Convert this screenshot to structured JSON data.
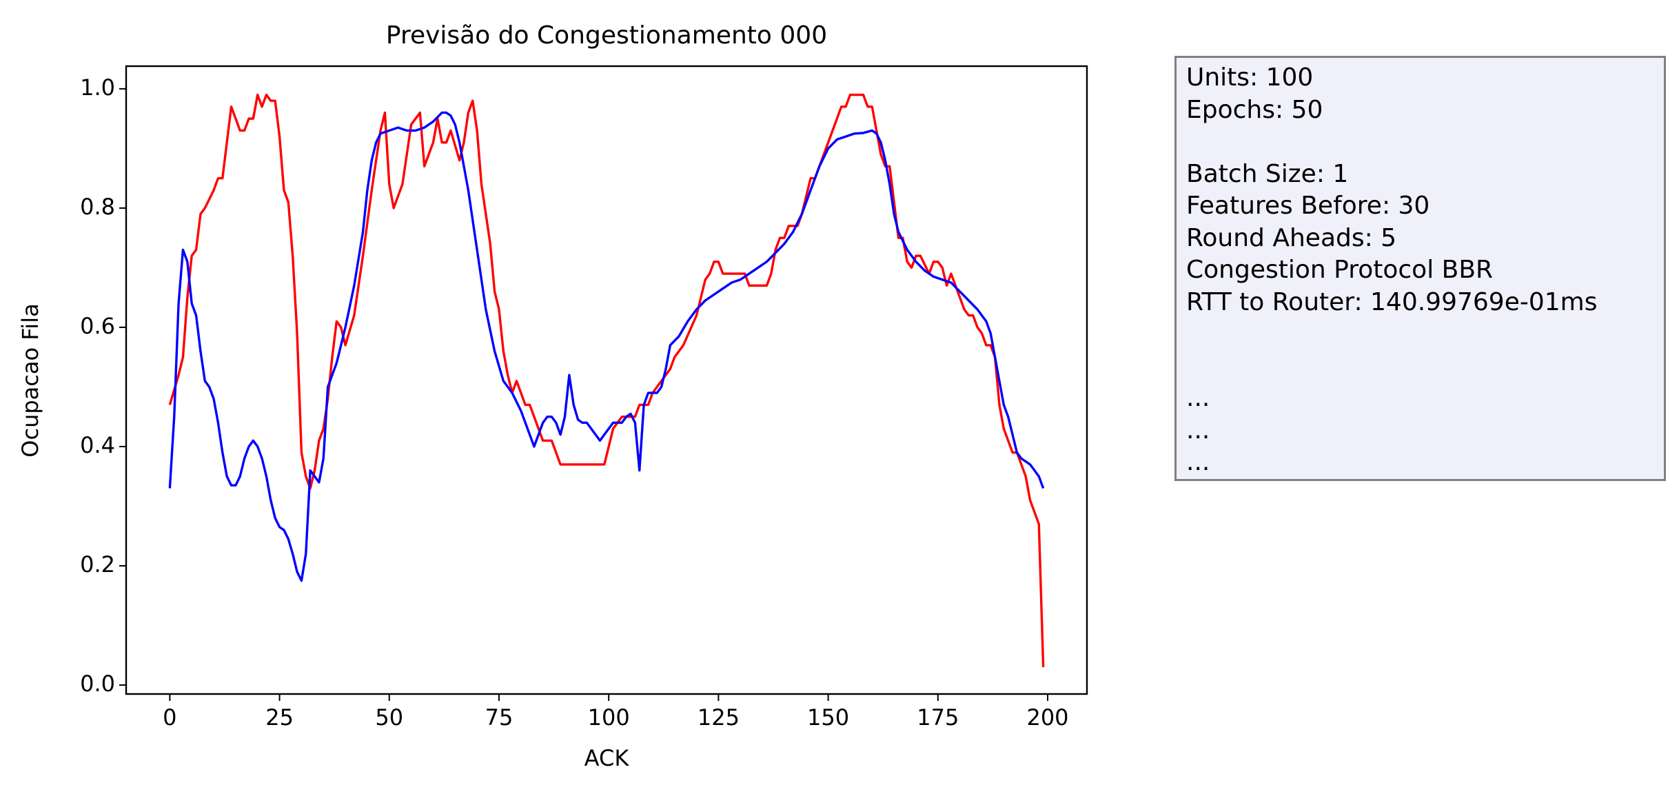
{
  "chart_data": {
    "type": "line",
    "title": "Previsão do Congestionamento 000",
    "xlabel": "ACK",
    "ylabel": "Ocupacao Fila",
    "xlim": [
      -9.95,
      208.95
    ],
    "ylim": [
      -0.015,
      1.038
    ],
    "xticks": [
      0,
      25,
      50,
      75,
      100,
      125,
      150,
      175,
      200
    ],
    "yticks": [
      {
        "value": 0,
        "label": "0.0"
      },
      0.2,
      0.4,
      0.6,
      0.8,
      {
        "value": 1,
        "label": "1.0"
      }
    ],
    "series": [
      {
        "color": "#ff0000",
        "x": [
          0,
          2,
          3,
          4,
          5,
          6,
          7,
          8,
          10,
          11,
          12,
          13,
          14,
          15,
          16,
          17,
          18,
          19,
          20,
          21,
          22,
          23,
          24,
          25,
          26,
          27,
          28,
          29,
          30,
          31,
          32,
          33,
          34,
          35,
          36,
          37,
          38,
          39,
          40,
          42,
          44,
          46,
          48,
          49,
          50,
          51,
          53,
          55,
          57,
          58,
          60,
          61,
          62,
          63,
          64,
          66,
          67,
          68,
          69,
          70,
          71,
          73,
          74,
          75,
          76,
          77,
          78,
          79,
          80,
          81,
          82,
          84,
          85,
          87,
          89,
          99,
          101,
          103,
          106,
          107,
          109,
          110,
          112,
          114,
          115,
          117,
          120,
          122,
          123,
          124,
          125,
          126,
          131,
          132,
          136,
          137,
          138,
          139,
          140,
          141,
          143,
          144,
          146,
          147,
          150,
          153,
          154,
          155,
          158,
          159,
          160,
          162,
          163,
          164,
          165,
          166,
          167,
          168,
          169,
          170,
          171,
          173,
          174,
          175,
          176,
          177,
          178,
          180,
          181,
          182,
          183,
          184,
          185,
          186,
          187,
          188,
          189,
          190,
          191,
          192,
          193,
          194,
          195,
          196,
          198,
          199
        ],
        "values": [
          0.47,
          0.52,
          0.55,
          0.65,
          0.72,
          0.73,
          0.79,
          0.8,
          0.83,
          0.85,
          0.85,
          0.91,
          0.97,
          0.95,
          0.93,
          0.93,
          0.95,
          0.95,
          0.99,
          0.97,
          0.99,
          0.98,
          0.98,
          0.92,
          0.83,
          0.81,
          0.72,
          0.59,
          0.39,
          0.35,
          0.33,
          0.36,
          0.41,
          0.43,
          0.48,
          0.55,
          0.61,
          0.6,
          0.57,
          0.62,
          0.72,
          0.83,
          0.93,
          0.96,
          0.84,
          0.8,
          0.84,
          0.94,
          0.96,
          0.87,
          0.91,
          0.95,
          0.91,
          0.91,
          0.93,
          0.88,
          0.91,
          0.96,
          0.98,
          0.93,
          0.84,
          0.74,
          0.66,
          0.63,
          0.56,
          0.52,
          0.49,
          0.51,
          0.49,
          0.47,
          0.47,
          0.43,
          0.41,
          0.41,
          0.37,
          0.37,
          0.43,
          0.45,
          0.45,
          0.47,
          0.47,
          0.49,
          0.51,
          0.53,
          0.55,
          0.57,
          0.62,
          0.68,
          0.69,
          0.71,
          0.71,
          0.69,
          0.69,
          0.67,
          0.67,
          0.69,
          0.73,
          0.75,
          0.75,
          0.77,
          0.77,
          0.79,
          0.85,
          0.85,
          0.91,
          0.97,
          0.97,
          0.99,
          0.99,
          0.97,
          0.97,
          0.89,
          0.87,
          0.87,
          0.81,
          0.75,
          0.75,
          0.71,
          0.7,
          0.72,
          0.72,
          0.69,
          0.71,
          0.71,
          0.7,
          0.67,
          0.69,
          0.65,
          0.63,
          0.62,
          0.62,
          0.6,
          0.59,
          0.57,
          0.57,
          0.55,
          0.47,
          0.43,
          0.41,
          0.39,
          0.39,
          0.37,
          0.35,
          0.31,
          0.27,
          0.03
        ]
      },
      {
        "color": "#0000ff",
        "x": [
          0,
          1,
          2,
          3,
          4,
          5,
          6,
          7,
          8,
          9,
          10,
          11,
          12,
          13,
          14,
          15,
          16,
          17,
          18,
          19,
          20,
          21,
          22,
          23,
          24,
          25,
          26,
          27,
          28,
          29,
          30,
          31,
          32,
          33,
          34,
          35,
          36,
          37,
          38,
          40,
          42,
          44,
          45,
          46,
          47,
          48,
          50,
          52,
          54,
          56,
          58,
          60,
          62,
          63,
          64,
          65,
          66,
          68,
          70,
          72,
          74,
          76,
          78,
          80,
          82,
          83,
          84,
          85,
          86,
          87,
          88,
          89,
          90,
          91,
          92,
          93,
          94,
          95,
          96,
          97,
          98,
          99,
          100,
          101,
          103,
          104,
          105,
          106,
          107,
          108,
          109,
          111,
          112,
          113,
          114,
          116,
          118,
          120,
          122,
          124,
          126,
          128,
          130,
          132,
          134,
          136,
          138,
          140,
          142,
          144,
          146,
          148,
          150,
          152,
          154,
          156,
          158,
          160,
          161,
          162,
          163,
          164,
          165,
          166,
          168,
          170,
          172,
          174,
          176,
          178,
          180,
          182,
          184,
          186,
          187,
          188,
          189,
          190,
          191,
          192,
          193,
          194,
          196,
          198,
          199
        ],
        "values": [
          0.33,
          0.45,
          0.64,
          0.73,
          0.71,
          0.64,
          0.62,
          0.56,
          0.51,
          0.5,
          0.48,
          0.44,
          0.39,
          0.35,
          0.335,
          0.335,
          0.35,
          0.38,
          0.4,
          0.41,
          0.4,
          0.38,
          0.35,
          0.31,
          0.28,
          0.265,
          0.26,
          0.245,
          0.22,
          0.19,
          0.175,
          0.22,
          0.36,
          0.35,
          0.34,
          0.38,
          0.5,
          0.52,
          0.54,
          0.6,
          0.67,
          0.76,
          0.83,
          0.88,
          0.91,
          0.925,
          0.93,
          0.935,
          0.93,
          0.93,
          0.935,
          0.945,
          0.96,
          0.96,
          0.955,
          0.94,
          0.91,
          0.83,
          0.73,
          0.63,
          0.56,
          0.51,
          0.49,
          0.46,
          0.42,
          0.4,
          0.42,
          0.44,
          0.45,
          0.45,
          0.44,
          0.42,
          0.45,
          0.52,
          0.47,
          0.445,
          0.44,
          0.44,
          0.43,
          0.42,
          0.41,
          0.42,
          0.43,
          0.44,
          0.44,
          0.45,
          0.455,
          0.44,
          0.36,
          0.47,
          0.49,
          0.49,
          0.5,
          0.53,
          0.57,
          0.585,
          0.61,
          0.63,
          0.645,
          0.655,
          0.665,
          0.675,
          0.68,
          0.69,
          0.7,
          0.71,
          0.725,
          0.74,
          0.76,
          0.79,
          0.83,
          0.87,
          0.9,
          0.915,
          0.92,
          0.925,
          0.926,
          0.93,
          0.925,
          0.91,
          0.88,
          0.84,
          0.79,
          0.76,
          0.73,
          0.71,
          0.695,
          0.685,
          0.68,
          0.675,
          0.66,
          0.645,
          0.63,
          0.61,
          0.59,
          0.55,
          0.51,
          0.47,
          0.45,
          0.42,
          0.39,
          0.38,
          0.37,
          0.35,
          0.33
        ]
      }
    ]
  },
  "info_box": {
    "groups": [
      [
        "Units: 100",
        "Epochs: 50"
      ],
      [
        "Batch Size: 1",
        "Features Before: 30",
        "Round Aheads: 5",
        "Congestion Protocol BBR",
        "RTT to Router: 140.99769e-01ms"
      ],
      [
        "...",
        "...",
        "..."
      ]
    ]
  }
}
